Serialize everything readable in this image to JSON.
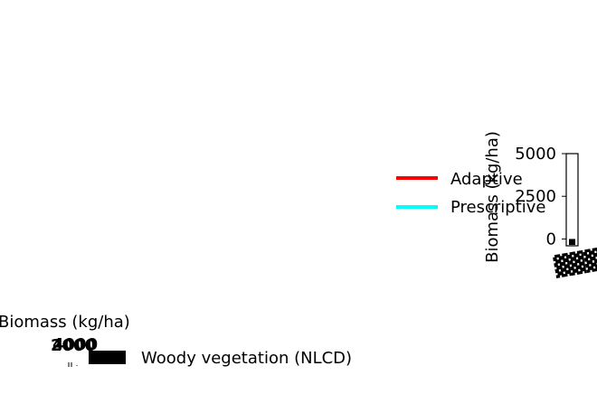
{
  "chart_data": [
    {
      "type": "bar",
      "ylabel": "Biomass (kg/ha)",
      "y_ticks": [
        "0",
        "2500",
        "5000"
      ],
      "ylim": [
        -400,
        5000
      ],
      "legend": {
        "placement": "left",
        "entries": [
          {
            "name": "Adaptive",
            "color": "#ff0000"
          },
          {
            "name": "Prescriptive",
            "color": "#00ffff"
          }
        ]
      },
      "x_tick_glyphs": "▓▓▓",
      "bars": [
        {
          "value": -350,
          "color": "#000000"
        }
      ]
    },
    {
      "type": "heatmap",
      "colorbar_label": "Biomass (kg/ha)",
      "colorbar_ticks": [
        "2000",
        "4000"
      ],
      "legend": {
        "placement": "right",
        "entries": [
          {
            "name": "Woody vegetation (NLCD)",
            "color": "#000000"
          }
        ]
      }
    }
  ]
}
